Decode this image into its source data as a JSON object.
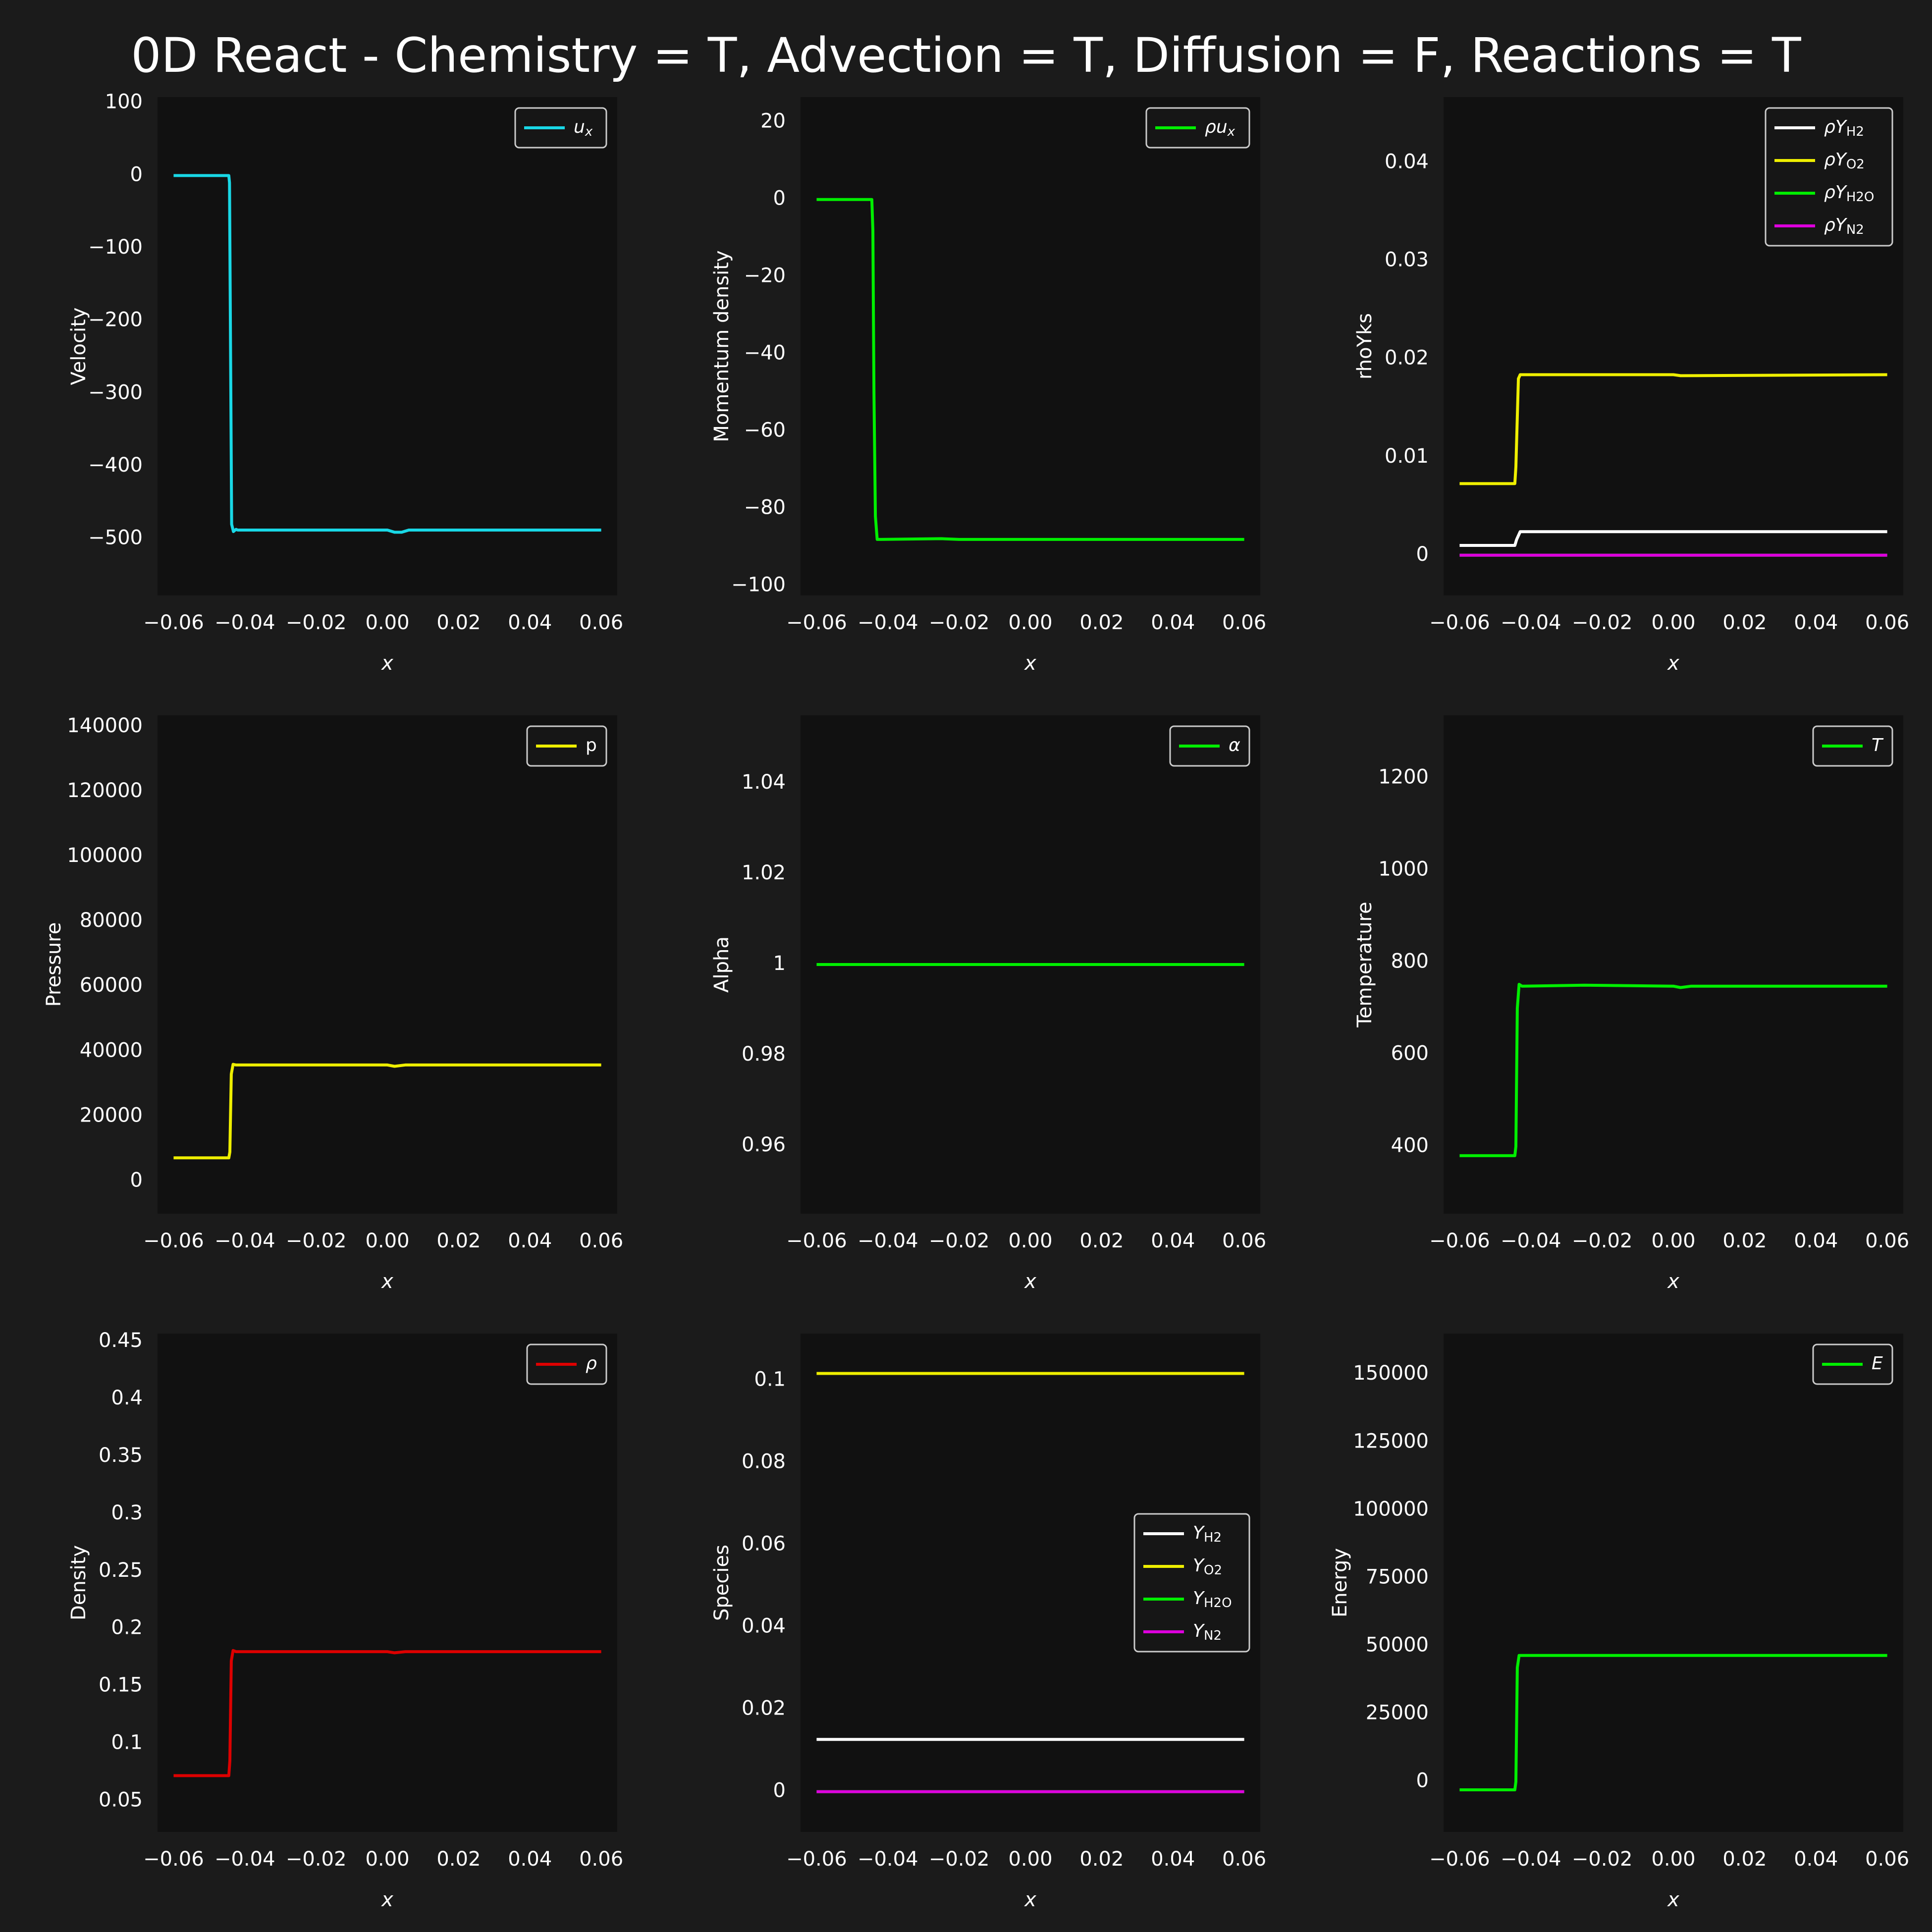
{
  "figure": {
    "title": "0D React - Chemistry = T, Advection = T, Diffusion = F, Reactions = T",
    "background": "#1b1b1b",
    "axes_background": "#111111"
  },
  "chart_data": [
    {
      "type": "line",
      "ylabel": "Velocity",
      "xlabel": "x",
      "xlim": [
        -0.0645,
        0.0645
      ],
      "ylim": [
        -578,
        108
      ],
      "xticks": [
        -0.06,
        -0.04,
        -0.02,
        0.0,
        0.02,
        0.04,
        0.06
      ],
      "yticks": [
        100,
        0,
        -100,
        -200,
        -300,
        -400,
        -500
      ],
      "legend_position": "upper right",
      "series": [
        {
          "name": "u_x",
          "color": "#19d8e6",
          "x": [
            -0.06,
            -0.0445,
            -0.0443,
            -0.044,
            -0.0437,
            -0.0432,
            -0.0425,
            -0.042,
            0.0,
            0.002,
            0.004,
            0.006,
            0.06
          ],
          "y": [
            0,
            0,
            -10,
            -250,
            -480,
            -490,
            -487,
            -488,
            -488,
            -491,
            -491,
            -488,
            -488
          ]
        }
      ]
    },
    {
      "type": "line",
      "ylabel": "Momentum density",
      "xlabel": "x",
      "xlim": [
        -0.0645,
        0.0645
      ],
      "ylim": [
        -102.5,
        26.5
      ],
      "xticks": [
        -0.06,
        -0.04,
        -0.02,
        0.0,
        0.02,
        0.04,
        0.06
      ],
      "yticks": [
        20,
        0,
        -20,
        -40,
        -60,
        -80,
        -100
      ],
      "legend_position": "upper right",
      "series": [
        {
          "name": "ρu_x",
          "color": "#00ee00",
          "x": [
            -0.06,
            -0.0445,
            -0.0442,
            -0.0439,
            -0.0435,
            -0.043,
            -0.042,
            -0.025,
            -0.02,
            0.06
          ],
          "y": [
            0,
            0,
            -8,
            -50,
            -82,
            -88,
            -88,
            -87.8,
            -88,
            -88
          ]
        }
      ]
    },
    {
      "type": "line",
      "ylabel": "rhoYks",
      "xlabel": "x",
      "xlim": [
        -0.0645,
        0.0645
      ],
      "ylim": [
        -0.0041,
        0.0467
      ],
      "xticks": [
        -0.06,
        -0.04,
        -0.02,
        0.0,
        0.02,
        0.04,
        0.06
      ],
      "yticks": [
        0.04,
        0.03,
        0.02,
        0.01,
        0.0
      ],
      "legend_position": "upper right",
      "series": [
        {
          "name": "ρY_H2",
          "color": "#ffffff",
          "x": [
            -0.06,
            -0.0445,
            -0.044,
            -0.043,
            0.06
          ],
          "y": [
            0.001,
            0.001,
            0.0016,
            0.0024,
            0.0024
          ]
        },
        {
          "name": "ρY_O2",
          "color": "#eeee00",
          "x": [
            -0.06,
            -0.0445,
            -0.0442,
            -0.0435,
            -0.043,
            0.0,
            0.002,
            0.06
          ],
          "y": [
            0.0073,
            0.0073,
            0.009,
            0.018,
            0.0184,
            0.0184,
            0.0183,
            0.0184
          ]
        },
        {
          "name": "ρY_H2O",
          "color": "#00ee00",
          "x": [
            -0.06,
            0.06
          ],
          "y": [
            0.0,
            0.0
          ]
        },
        {
          "name": "ρY_N2",
          "color": "#dd00dd",
          "x": [
            -0.06,
            0.06
          ],
          "y": [
            0.0,
            0.0
          ]
        }
      ]
    },
    {
      "type": "line",
      "ylabel": "Pressure",
      "xlabel": "x",
      "xlim": [
        -0.0645,
        0.0645
      ],
      "ylim": [
        -10000,
        143500
      ],
      "xticks": [
        -0.06,
        -0.04,
        -0.02,
        0.0,
        0.02,
        0.04,
        0.06
      ],
      "yticks": [
        140000,
        120000,
        100000,
        80000,
        60000,
        40000,
        20000,
        0
      ],
      "legend_position": "upper right",
      "series": [
        {
          "name": "p",
          "color": "#eeee00",
          "x": [
            -0.06,
            -0.0445,
            -0.0442,
            -0.0438,
            -0.0433,
            -0.0425,
            0.0,
            0.002,
            0.005,
            0.06
          ],
          "y": [
            7200,
            7200,
            9000,
            33000,
            36000,
            35800,
            35800,
            35400,
            35800,
            35800
          ]
        }
      ]
    },
    {
      "type": "line",
      "ylabel": "Alpha",
      "xlabel": "x",
      "xlim": [
        -0.0645,
        0.0645
      ],
      "ylim": [
        0.945,
        1.055
      ],
      "xticks": [
        -0.06,
        -0.04,
        -0.02,
        0.0,
        0.02,
        0.04,
        0.06
      ],
      "yticks": [
        1.04,
        1.02,
        1.0,
        0.98,
        0.96
      ],
      "legend_position": "upper right",
      "series": [
        {
          "name": "α",
          "color": "#00ee00",
          "x": [
            -0.06,
            0.06
          ],
          "y": [
            1.0,
            1.0
          ]
        }
      ]
    },
    {
      "type": "line",
      "ylabel": "Temperature",
      "xlabel": "x",
      "xlim": [
        -0.0645,
        0.0645
      ],
      "ylim": [
        254,
        1336
      ],
      "xticks": [
        -0.06,
        -0.04,
        -0.02,
        0.0,
        0.02,
        0.04,
        0.06
      ],
      "yticks": [
        1200,
        1000,
        800,
        600,
        400
      ],
      "legend_position": "upper right",
      "series": [
        {
          "name": "T",
          "color": "#00ee00",
          "x": [
            -0.06,
            -0.0445,
            -0.0442,
            -0.0438,
            -0.0433,
            -0.0425,
            -0.025,
            0.0,
            0.002,
            0.005,
            0.06
          ],
          "y": [
            380,
            380,
            400,
            700,
            752,
            748,
            750,
            748,
            745,
            748,
            748
          ]
        }
      ]
    },
    {
      "type": "line",
      "ylabel": "Density",
      "xlabel": "x",
      "xlim": [
        -0.0645,
        0.0645
      ],
      "ylim": [
        0.023,
        0.457
      ],
      "xticks": [
        -0.06,
        -0.04,
        -0.02,
        0.0,
        0.02,
        0.04,
        0.06
      ],
      "yticks": [
        0.45,
        0.4,
        0.35,
        0.3,
        0.25,
        0.2,
        0.15,
        0.1,
        0.05
      ],
      "legend_position": "upper right",
      "series": [
        {
          "name": "ρ",
          "color": "#dd0000",
          "x": [
            -0.06,
            -0.0445,
            -0.0442,
            -0.0438,
            -0.0433,
            -0.0425,
            0.0,
            0.002,
            0.005,
            0.06
          ],
          "y": [
            0.072,
            0.072,
            0.085,
            0.172,
            0.181,
            0.18,
            0.18,
            0.179,
            0.18,
            0.18
          ]
        }
      ]
    },
    {
      "type": "line",
      "ylabel": "Species",
      "xlabel": "x",
      "xlim": [
        -0.0645,
        0.0645
      ],
      "ylim": [
        -0.0098,
        0.1114
      ],
      "xticks": [
        -0.06,
        -0.04,
        -0.02,
        0.0,
        0.02,
        0.04,
        0.06
      ],
      "yticks": [
        0.1,
        0.08,
        0.06,
        0.04,
        0.02,
        0.0
      ],
      "legend_position": "center right",
      "series": [
        {
          "name": "Y_H2",
          "color": "#ffffff",
          "x": [
            -0.06,
            0.06
          ],
          "y": [
            0.0127,
            0.0127
          ]
        },
        {
          "name": "Y_O2",
          "color": "#eeee00",
          "x": [
            -0.06,
            0.06
          ],
          "y": [
            0.1017,
            0.1017
          ]
        },
        {
          "name": "Y_H2O",
          "color": "#00ee00",
          "x": [
            -0.06,
            0.06
          ],
          "y": [
            0.0,
            0.0
          ]
        },
        {
          "name": "Y_N2",
          "color": "#dd00dd",
          "x": [
            -0.06,
            0.06
          ],
          "y": [
            0.0,
            0.0
          ]
        }
      ]
    },
    {
      "type": "line",
      "ylabel": "Energy",
      "xlabel": "x",
      "xlim": [
        -0.0645,
        0.0645
      ],
      "ylim": [
        -18500,
        165000
      ],
      "xticks": [
        -0.06,
        -0.04,
        -0.02,
        0.0,
        0.02,
        0.04,
        0.06
      ],
      "yticks": [
        150000,
        125000,
        100000,
        75000,
        50000,
        25000,
        0
      ],
      "legend_position": "upper right",
      "series": [
        {
          "name": "E",
          "color": "#00ee00",
          "x": [
            -0.06,
            -0.0445,
            -0.0442,
            -0.0438,
            -0.0433,
            0.06
          ],
          "y": [
            -3000,
            -3000,
            0,
            42000,
            46500,
            46500
          ]
        }
      ]
    }
  ]
}
